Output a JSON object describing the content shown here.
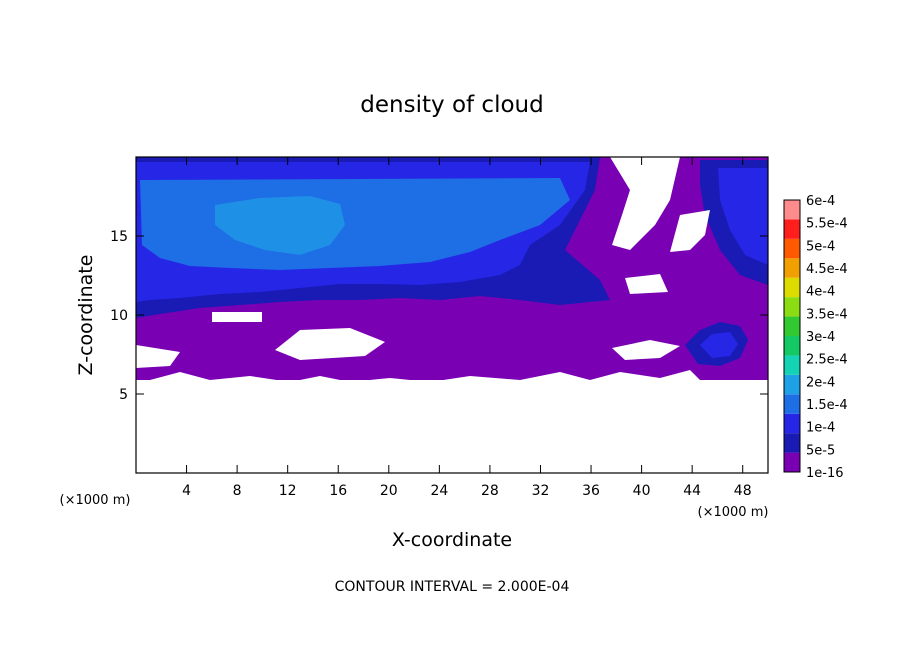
{
  "chart_data": {
    "type": "heatmap",
    "title": "density of cloud",
    "xlabel": "X-coordinate",
    "ylabel": "Z-coordinate",
    "x_unit": "(×1000 m)",
    "y_unit": "(×1000 m)",
    "xlim": [
      0,
      50
    ],
    "ylim": [
      0,
      20
    ],
    "x_ticks": [
      4,
      8,
      12,
      16,
      20,
      24,
      28,
      32,
      36,
      40,
      44,
      48
    ],
    "y_ticks": [
      5,
      10,
      15
    ],
    "colorbar": {
      "levels": [
        "1e-16",
        "5e-5",
        "1e-4",
        "1.5e-4",
        "2e-4",
        "2.5e-4",
        "3e-4",
        "3.5e-4",
        "4e-4",
        "4.5e-4",
        "5e-4",
        "5.5e-4",
        "6e-4"
      ],
      "colors": [
        "#7a00b4",
        "#1a1ab4",
        "#2626e6",
        "#1e6ee6",
        "#1ea0e6",
        "#14d2b4",
        "#14c864",
        "#32c832",
        "#8cdc14",
        "#dcdc00",
        "#f0a000",
        "#ff5a00",
        "#ff1e1e",
        "#ff8c8c"
      ]
    },
    "cloud_layer_base_z": 6,
    "cloud_layer_top_z": 19.7,
    "note": "CONTOUR INTERVAL = 2.000E-04"
  }
}
